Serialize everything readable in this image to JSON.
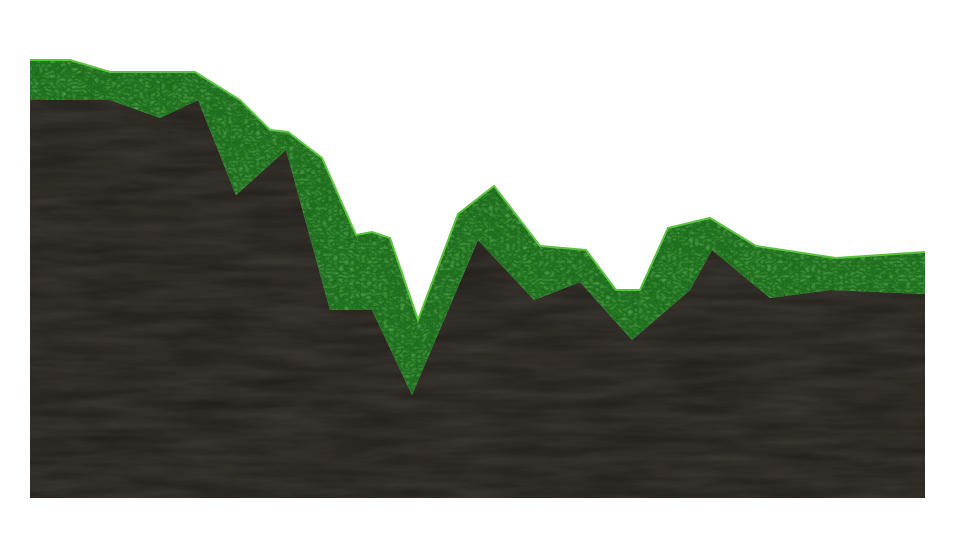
{
  "scene": {
    "type": "2d side-view terrain",
    "background_color": "#ffffff",
    "soil_color": "#211d18",
    "soil_shadow_color": "#17140f",
    "grass_color": "#1d6d1d",
    "grass_dark_color": "#0f3f0f",
    "grass_light_color": "#3ea42e",
    "grass_highlight_color": "#5bc53f"
  }
}
